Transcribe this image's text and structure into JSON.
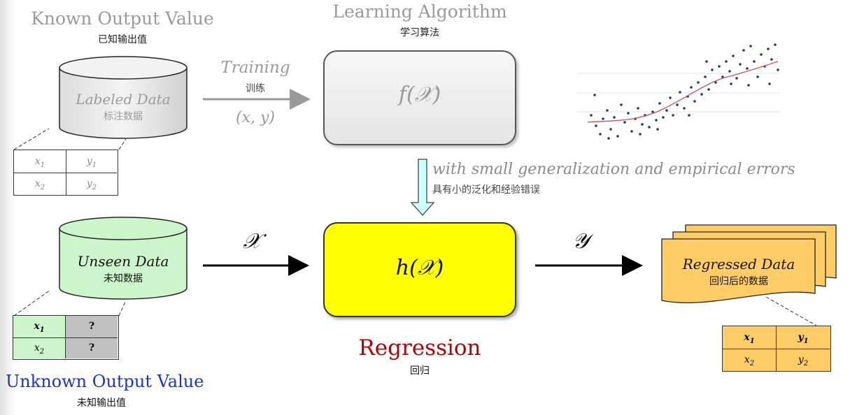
{
  "known": {
    "title": "Known Output Value",
    "subtitle": "已知输出值"
  },
  "learning": {
    "title": "Learning Algorithm",
    "subtitle": "学习算法"
  },
  "labeled_db": {
    "title": "Labeled Data",
    "subtitle": "标注数据"
  },
  "training": {
    "title": "Training",
    "subtitle": "训练",
    "pair": "(x, y)"
  },
  "f_box": {
    "label": "f(𝒳)"
  },
  "h_box": {
    "label": "h(𝒳)"
  },
  "generalization": {
    "text": "with small generalization and empirical errors",
    "subtitle": "具有小的泛化和经验错误"
  },
  "unseen_db": {
    "title": "Unseen Data",
    "subtitle": "未知数据"
  },
  "x_arrow": {
    "label": "𝒳"
  },
  "y_arrow": {
    "label": "𝒴"
  },
  "regressed": {
    "title": "Regressed Data",
    "subtitle": "回归后的数据"
  },
  "regression": {
    "title": "Regression",
    "subtitle": "回归"
  },
  "unknown": {
    "title": "Unknown Output Value",
    "subtitle": "未知输出值"
  },
  "labeled_table": [
    [
      "x1",
      "y1"
    ],
    [
      "x2",
      "y2"
    ]
  ],
  "unseen_table": [
    [
      "x1",
      "?"
    ],
    [
      "x2",
      "?"
    ]
  ],
  "regressed_table": [
    [
      "x1",
      "y1"
    ],
    [
      "x2",
      "y2"
    ]
  ],
  "colors": {
    "unseen_fill": "#ccf5cc",
    "h_fill": "#ffff00",
    "regressed_fill": "#ffcc66",
    "regression_red": "#b30000",
    "unknown_blue": "#1a33cc",
    "arrow_cyan": "#ccffff"
  }
}
